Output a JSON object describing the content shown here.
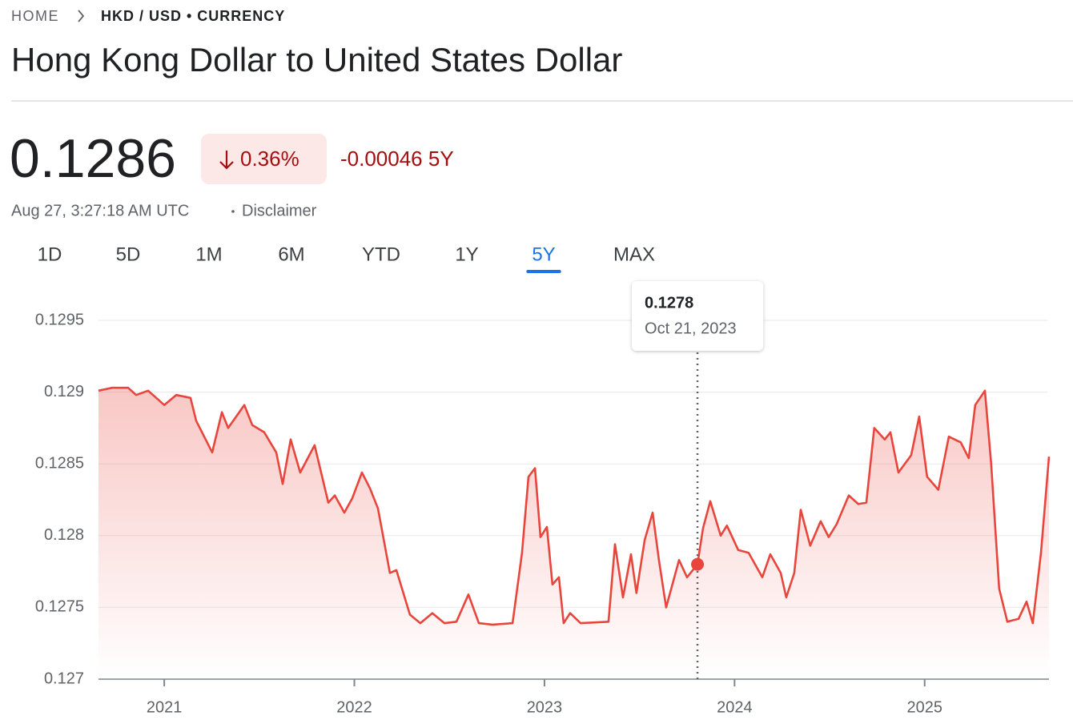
{
  "breadcrumb": [
    "HOME",
    "HKD / USD • CURRENCY"
  ],
  "title": "Hong Kong Dollar to United States Dollar",
  "price": "0.1286",
  "change_percent": "0.36%",
  "change": "-0.00046 5Y",
  "timestamp": "Aug 27, 3:27:18 AM UTC",
  "disclaimer": "Disclaimer",
  "tabs": [
    {
      "label": "1D"
    },
    {
      "label": "5D"
    },
    {
      "label": "1M"
    },
    {
      "label": "6M"
    },
    {
      "label": "YTD"
    },
    {
      "label": "1Y"
    },
    {
      "label": "5Y",
      "selected": true
    },
    {
      "label": "MAX"
    }
  ],
  "chart_data": {
    "type": "line",
    "color": "#e8453c",
    "grid": true,
    "x": [
      2020.654,
      2020.726,
      2020.81,
      2020.852,
      2020.915,
      2021,
      2021.063,
      2021.138,
      2021.168,
      2021.252,
      2021.303,
      2021.336,
      2021.421,
      2021.463,
      2021.526,
      2021.589,
      2021.623,
      2021.665,
      2021.715,
      2021.791,
      2021.863,
      2021.897,
      2021.947,
      2021.989,
      2022.04,
      2022.082,
      2022.124,
      2022.187,
      2022.221,
      2022.292,
      2022.347,
      2022.41,
      2022.474,
      2022.537,
      2022.6,
      2022.655,
      2022.726,
      2022.832,
      2022.882,
      2022.916,
      2022.95,
      2022.979,
      2023.013,
      2023.042,
      2023.076,
      2023.101,
      2023.135,
      2023.19,
      2023.337,
      2023.371,
      2023.413,
      2023.455,
      2023.484,
      2023.527,
      2023.569,
      2023.602,
      2023.64,
      2023.708,
      2023.75,
      2023.805,
      2023.834,
      2023.872,
      2023.927,
      2023.96,
      2024.019,
      2024.074,
      2024.146,
      2024.188,
      2024.243,
      2024.272,
      2024.314,
      2024.348,
      2024.398,
      2024.453,
      2024.495,
      2024.537,
      2024.601,
      2024.651,
      2024.693,
      2024.735,
      2024.79,
      2024.82,
      2024.862,
      2024.929,
      2024.971,
      2025.013,
      2025.072,
      2025.127,
      2025.19,
      2025.232,
      2025.266,
      2025.317,
      2025.35,
      2025.392,
      2025.435,
      2025.494,
      2025.536,
      2025.569,
      2025.612,
      2025.654
    ],
    "values": [
      0.12901,
      0.12903,
      0.12903,
      0.12898,
      0.12901,
      0.12891,
      0.12898,
      0.12896,
      0.1288,
      0.12858,
      0.12886,
      0.12875,
      0.12891,
      0.12877,
      0.12872,
      0.12858,
      0.12836,
      0.12867,
      0.12844,
      0.12863,
      0.12823,
      0.12828,
      0.12816,
      0.12826,
      0.12844,
      0.12833,
      0.12819,
      0.12774,
      0.12776,
      0.12745,
      0.12739,
      0.12746,
      0.12739,
      0.1274,
      0.12759,
      0.12739,
      0.12738,
      0.12739,
      0.12788,
      0.12841,
      0.12847,
      0.12799,
      0.12806,
      0.12766,
      0.12771,
      0.12739,
      0.12746,
      0.12739,
      0.1274,
      0.12794,
      0.12757,
      0.12787,
      0.1276,
      0.12797,
      0.12816,
      0.12783,
      0.1275,
      0.12783,
      0.12771,
      0.1278,
      0.12805,
      0.12824,
      0.128,
      0.12807,
      0.1279,
      0.12788,
      0.12771,
      0.12787,
      0.12774,
      0.12757,
      0.12774,
      0.12818,
      0.12793,
      0.1281,
      0.12799,
      0.12808,
      0.12828,
      0.12822,
      0.12823,
      0.12875,
      0.12867,
      0.12872,
      0.12844,
      0.12856,
      0.12883,
      0.12841,
      0.12832,
      0.12869,
      0.12865,
      0.12854,
      0.12891,
      0.12901,
      0.1285,
      0.12763,
      0.1274,
      0.12742,
      0.12754,
      0.12739,
      0.12788,
      0.12855
    ],
    "xlim": [
      2020.654,
      2025.654
    ],
    "xticks": [
      2021,
      2022,
      2023,
      2024,
      2025
    ],
    "ylim": [
      0.127,
      0.1295
    ],
    "yticks": [
      0.1295,
      0.129,
      0.1285,
      0.128,
      0.1275,
      0.127
    ],
    "hover": {
      "x": 2023.805,
      "value": 0.1278,
      "date": "Oct 21, 2023"
    }
  }
}
